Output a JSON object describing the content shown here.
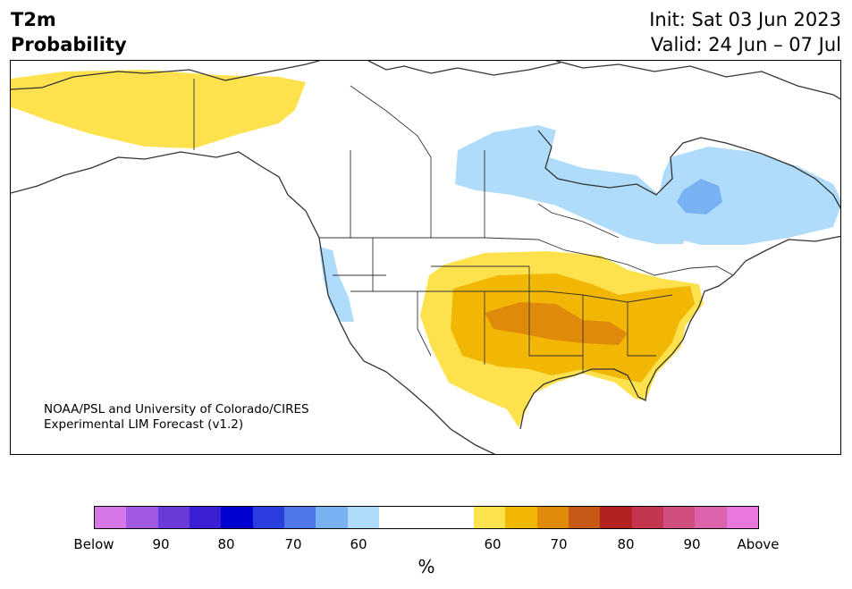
{
  "header": {
    "variable": "T2m",
    "product": "Probability",
    "init": "Init: Sat 03 Jun 2023",
    "valid": "Valid: 24 Jun – 07 Jul"
  },
  "credit": {
    "line1": "NOAA/PSL and University of Colorado/CIRES",
    "line2": "Experimental LIM Forecast (v1.2)"
  },
  "colorbar": {
    "unit": "%",
    "below_colors": [
      "#d677e8",
      "#a25ae4",
      "#6a3bd9",
      "#3a1fd4",
      "#0000cf",
      "#2a3ee0",
      "#5077e8",
      "#78b2f2",
      "#aedcfa"
    ],
    "above_colors": [
      "#fee24d",
      "#f2b705",
      "#e08a0b",
      "#c65915",
      "#b42121",
      "#c4354f",
      "#d14f7e",
      "#dc62ac",
      "#e878de"
    ],
    "labels": {
      "below": "Below",
      "b90": "90",
      "b80": "80",
      "b70": "70",
      "b60": "60",
      "a60": "60",
      "a70": "70",
      "a80": "80",
      "a90": "90",
      "above": "Above"
    }
  },
  "map": {
    "land_color": "#ffffff",
    "line_color": "#333333",
    "regions": [
      {
        "name": "Alaska / NW Canada",
        "category": "above",
        "level": "60"
      },
      {
        "name": "Northern Ontario / Hudson Bay",
        "category": "below",
        "level": "60"
      },
      {
        "name": "Quebec",
        "category": "below",
        "level": "60-70"
      },
      {
        "name": "Pacific Northwest coast",
        "category": "below",
        "level": "60"
      },
      {
        "name": "Central and Eastern United States",
        "category": "above",
        "level": "60-70"
      },
      {
        "name": "Central Plains / Mid-Mississippi Valley",
        "category": "above",
        "level": "70"
      }
    ]
  }
}
